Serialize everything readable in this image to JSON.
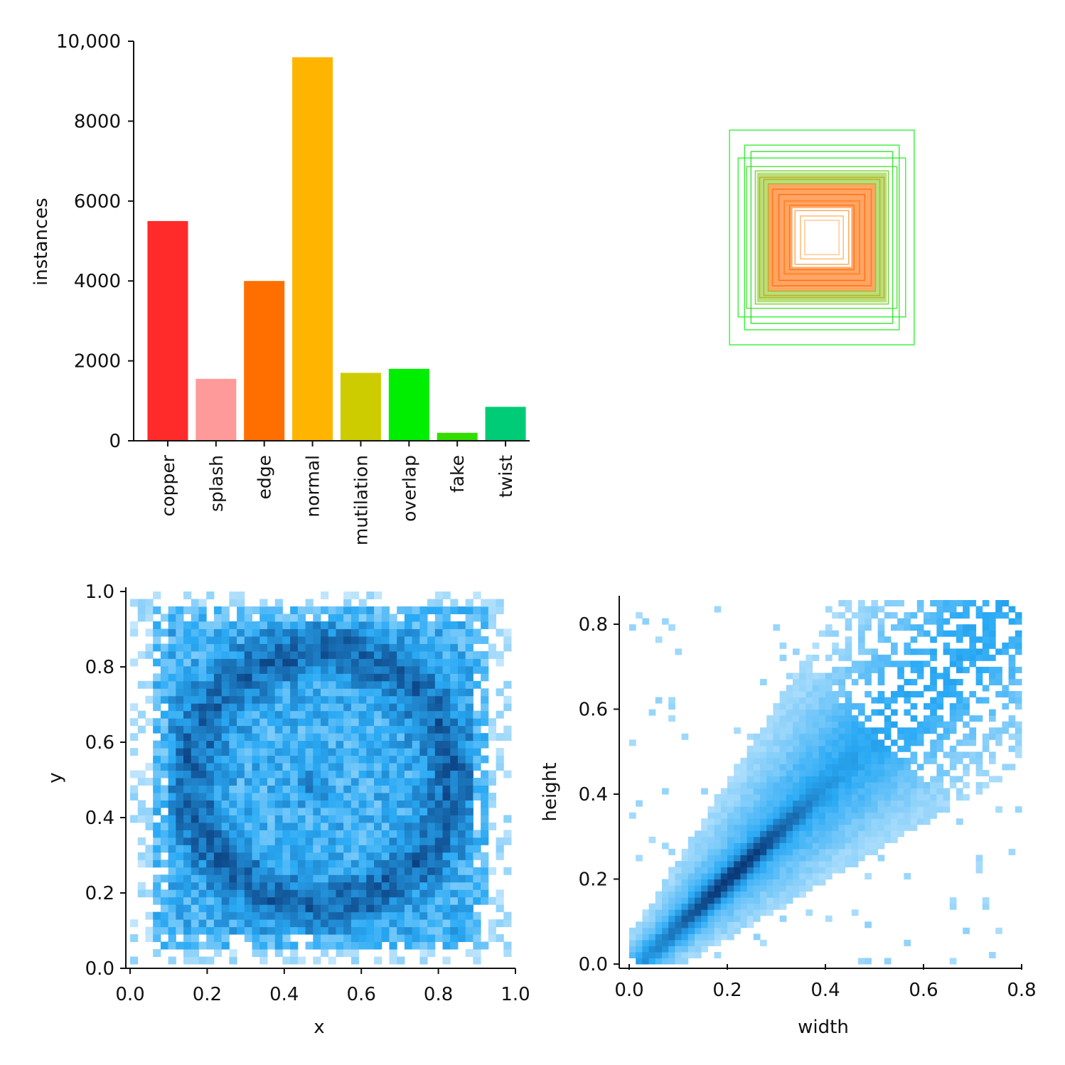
{
  "chart_data": [
    {
      "type": "bar",
      "xlabel": "",
      "ylabel": "instances",
      "ylim": [
        0,
        10000
      ],
      "yticks": [
        "0",
        "2000",
        "4000",
        "6000",
        "8000",
        "10,000"
      ],
      "categories": [
        "copper",
        "splash",
        "edge",
        "normal",
        "mutilation",
        "overlap",
        "fake",
        "twist"
      ],
      "values": [
        5500,
        1550,
        4000,
        9600,
        1700,
        1800,
        200,
        850
      ],
      "colors": [
        "#ff2a2a",
        "#ff9a9a",
        "#ff6f00",
        "#ffb400",
        "#cccc00",
        "#00ee00",
        "#33dd00",
        "#00cc77"
      ],
      "grid": false
    },
    {
      "type": "other",
      "description_kind": "box-overlay",
      "boxes": [
        {
          "w": 0.86,
          "h": 1.0,
          "color": "#22ee22"
        },
        {
          "w": 0.72,
          "h": 0.86,
          "color": "#22ee22"
        },
        {
          "w": 0.78,
          "h": 0.74,
          "color": "#22ee22"
        },
        {
          "w": 0.66,
          "h": 0.8,
          "color": "#22dd22"
        },
        {
          "w": 0.7,
          "h": 0.66,
          "color": "#44dd22"
        },
        {
          "w": 0.62,
          "h": 0.62,
          "color": "#66cc22"
        },
        {
          "w": 0.58,
          "h": 0.56,
          "color": "#ff7a22"
        },
        {
          "w": 0.54,
          "h": 0.54,
          "color": "#ff6a00"
        },
        {
          "w": 0.5,
          "h": 0.5,
          "color": "#ff6f10"
        },
        {
          "w": 0.46,
          "h": 0.45,
          "color": "#ff7b00"
        },
        {
          "w": 0.4,
          "h": 0.4,
          "color": "#ff6300"
        },
        {
          "w": 0.35,
          "h": 0.34,
          "color": "#ff8a20"
        },
        {
          "w": 0.3,
          "h": 0.3,
          "color": "#ff7a10"
        },
        {
          "w": 0.25,
          "h": 0.25,
          "color": "#ff9a40"
        },
        {
          "w": 0.2,
          "h": 0.2,
          "color": "#ffb060"
        },
        {
          "w": 0.16,
          "h": 0.16,
          "color": "#ffc080"
        }
      ]
    },
    {
      "type": "heatmap",
      "xlabel": "x",
      "ylabel": "y",
      "xlim": [
        0.0,
        1.0
      ],
      "ylim": [
        0.0,
        1.0
      ],
      "xticks": [
        "0.0",
        "0.2",
        "0.4",
        "0.6",
        "0.8",
        "1.0"
      ],
      "yticks": [
        "0.0",
        "0.2",
        "0.4",
        "0.6",
        "0.8",
        "1.0"
      ],
      "bins": 50,
      "density_extent": {
        "x": [
          0.05,
          0.95
        ],
        "y": [
          0.03,
          0.97
        ]
      },
      "colormap": [
        "#eaf6ff",
        "#2aaaf5",
        "#0a3a7a"
      ]
    },
    {
      "type": "heatmap",
      "xlabel": "width",
      "ylabel": "height",
      "xlim": [
        0.0,
        0.8
      ],
      "ylim": [
        0.0,
        0.8
      ],
      "xticks": [
        "0.0",
        "0.2",
        "0.4",
        "0.6",
        "0.8"
      ],
      "yticks": [
        "0.0",
        "0.2",
        "0.4",
        "0.6",
        "0.8"
      ],
      "bins": 60,
      "trend": {
        "from": [
          0.07,
          0.05
        ],
        "to": [
          0.65,
          0.65
        ]
      },
      "colormap": [
        "#eaf6ff",
        "#2aaaf5",
        "#0a3a7a"
      ]
    }
  ]
}
